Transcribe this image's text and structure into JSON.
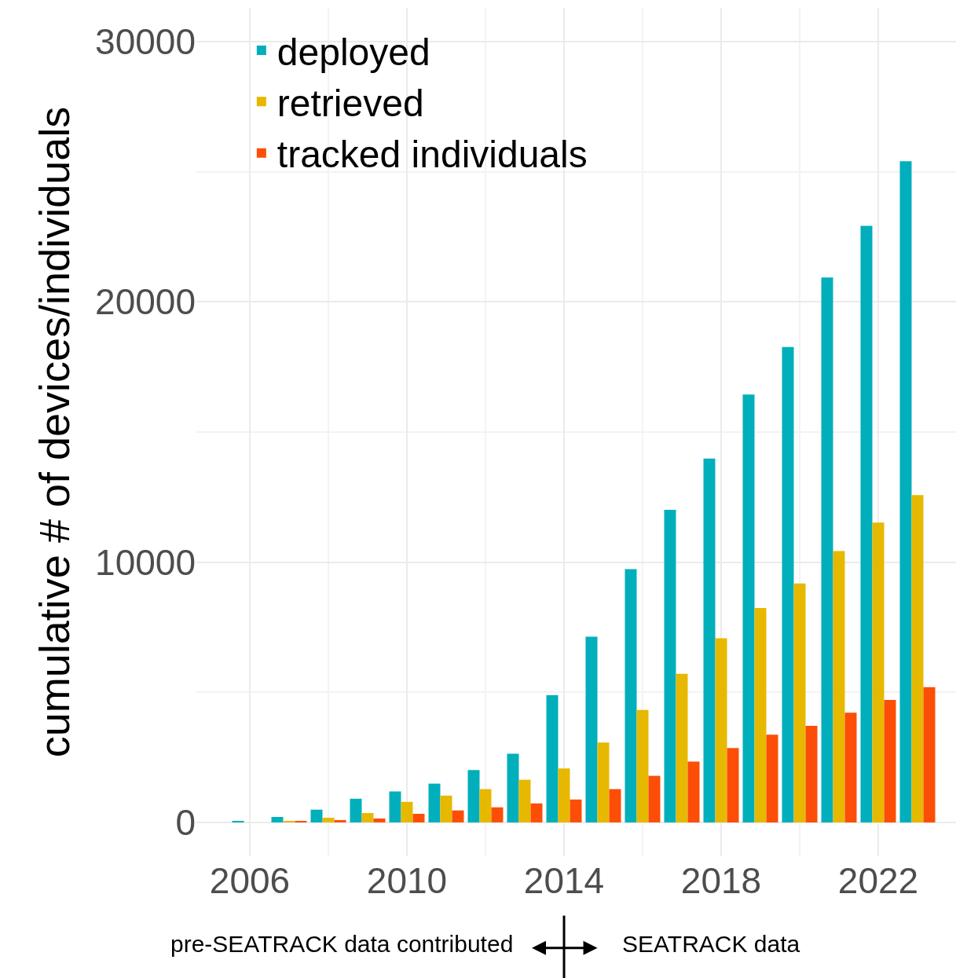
{
  "chart_data": {
    "type": "bar",
    "ylabel": "cumulative # of devices/individuals",
    "x": [
      2006,
      2007,
      2008,
      2009,
      2010,
      2011,
      2012,
      2013,
      2014,
      2015,
      2016,
      2017,
      2018,
      2019,
      2020,
      2021,
      2022,
      2023
    ],
    "series": [
      {
        "name": "deployed",
        "color": "#00afbb",
        "values": [
          60,
          210,
          490,
          910,
          1190,
          1490,
          2010,
          2640,
          4890,
          7140,
          9730,
          12010,
          13980,
          16440,
          18270,
          20940,
          22920,
          25410
        ]
      },
      {
        "name": "retrieved",
        "color": "#e7b800",
        "values": [
          0,
          30,
          180,
          360,
          790,
          1030,
          1280,
          1640,
          2070,
          3070,
          4320,
          5710,
          7080,
          8240,
          9180,
          10430,
          11520,
          12580
        ]
      },
      {
        "name": "tracked individuals",
        "color": "#fc4e07",
        "values": [
          0,
          30,
          90,
          150,
          330,
          460,
          580,
          730,
          880,
          1280,
          1790,
          2340,
          2860,
          3370,
          3710,
          4220,
          4710,
          5200
        ]
      }
    ],
    "xlim": [
      2004.64,
      2023.98
    ],
    "xticks": [
      2006,
      2010,
      2014,
      2018,
      2022
    ],
    "ylim": [
      -1300,
      31300
    ],
    "yticks": [
      0,
      10000,
      20000,
      30000
    ],
    "grid": true,
    "legend": "top left",
    "annotations": [
      "pre-SEATRACK data contributed",
      "SEATRACK data"
    ]
  }
}
